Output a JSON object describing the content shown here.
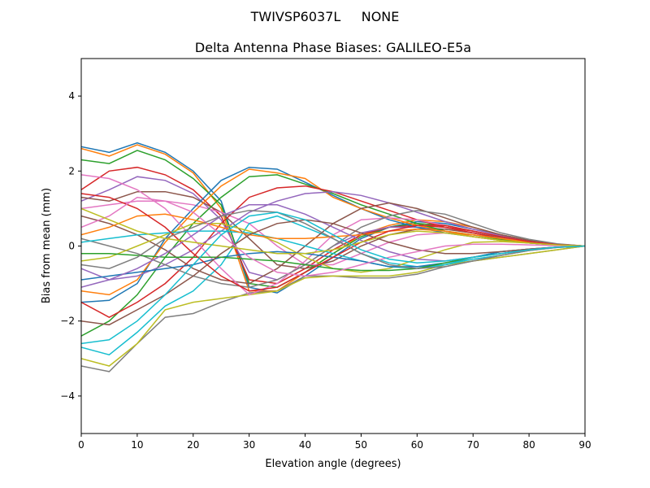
{
  "suptitle": "TWIVSP6037L     NONE",
  "chart_data": {
    "type": "line",
    "title": "Delta Antenna Phase Biases: GALILEO-E5a",
    "xlabel": "Elevation angle (degrees)",
    "ylabel": "Bias from mean (mm)",
    "xlim": [
      0,
      90
    ],
    "ylim": [
      -5,
      5
    ],
    "xticks": [
      0,
      10,
      20,
      30,
      40,
      50,
      60,
      70,
      80,
      90
    ],
    "yticks": [
      -4,
      -2,
      0,
      2,
      4
    ],
    "ytick_labels": [
      "−4",
      "−2",
      "0",
      "2",
      "4"
    ],
    "grid": false,
    "colors": [
      "#1f77b4",
      "#ff7f0e",
      "#2ca02c",
      "#d62728",
      "#9467bd",
      "#8c564b",
      "#e377c2",
      "#7f7f7f",
      "#bcbd22",
      "#17becf"
    ],
    "x": [
      0,
      5,
      10,
      15,
      20,
      25,
      30,
      35,
      40,
      45,
      50,
      55,
      60,
      65,
      70,
      75,
      80,
      85,
      90
    ],
    "series": [
      {
        "values": [
          2.65,
          2.5,
          2.75,
          2.5,
          2.0,
          1.2,
          -1.1,
          -1.25,
          -0.8,
          -0.3,
          0.2,
          0.5,
          0.65,
          0.6,
          0.45,
          0.3,
          0.15,
          0.05,
          0
        ]
      },
      {
        "values": [
          2.6,
          2.4,
          2.7,
          2.45,
          1.95,
          1.0,
          -1.2,
          -1.2,
          -0.7,
          -0.2,
          0.3,
          0.55,
          0.7,
          0.65,
          0.5,
          0.3,
          0.15,
          0.05,
          0
        ]
      },
      {
        "values": [
          2.3,
          2.2,
          2.55,
          2.3,
          1.8,
          1.1,
          -1.0,
          -1.1,
          -0.7,
          -0.2,
          0.25,
          0.5,
          0.6,
          0.55,
          0.4,
          0.25,
          0.12,
          0.04,
          0
        ]
      },
      {
        "values": [
          1.5,
          2.0,
          2.1,
          1.9,
          1.5,
          0.8,
          -0.9,
          -1.0,
          -0.6,
          -0.1,
          0.3,
          0.5,
          0.55,
          0.5,
          0.4,
          0.25,
          0.12,
          0.04,
          0
        ]
      },
      {
        "values": [
          1.2,
          1.5,
          1.85,
          1.75,
          1.4,
          0.7,
          -0.7,
          -0.9,
          -0.5,
          0,
          0.35,
          0.5,
          0.5,
          0.45,
          0.35,
          0.22,
          0.1,
          0.04,
          0
        ]
      },
      {
        "values": [
          1.3,
          1.2,
          1.45,
          1.45,
          1.3,
          0.9,
          0.2,
          -0.5,
          -0.6,
          -0.4,
          0,
          0.3,
          0.45,
          0.45,
          0.35,
          0.22,
          0.1,
          0.04,
          0
        ]
      },
      {
        "values": [
          1.0,
          1.1,
          1.2,
          1.2,
          1.1,
          0.9,
          0.6,
          0,
          -0.5,
          -0.5,
          -0.2,
          0.1,
          0.3,
          0.35,
          0.3,
          0.2,
          0.1,
          0.04,
          0
        ]
      },
      {
        "values": [
          -3.2,
          -3.35,
          -2.6,
          -1.9,
          -1.8,
          -1.5,
          -1.25,
          -1.2,
          -0.8,
          -0.8,
          -0.85,
          -0.85,
          -0.75,
          -0.55,
          -0.4,
          -0.3,
          -0.2,
          -0.1,
          0
        ]
      },
      {
        "values": [
          -3.0,
          -3.2,
          -2.6,
          -1.7,
          -1.5,
          -1.4,
          -1.3,
          -1.2,
          -0.85,
          -0.8,
          -0.8,
          -0.8,
          -0.7,
          -0.5,
          -0.4,
          -0.3,
          -0.2,
          -0.1,
          0
        ]
      },
      {
        "values": [
          -2.7,
          -2.9,
          -2.3,
          -1.6,
          -1.2,
          -0.5,
          0.6,
          0.8,
          0.5,
          0.2,
          -0.2,
          -0.45,
          -0.55,
          -0.5,
          -0.35,
          -0.25,
          -0.12,
          -0.04,
          0
        ]
      },
      {
        "values": [
          -1.5,
          -1.45,
          -1.0,
          0.2,
          1.0,
          1.75,
          2.1,
          2.05,
          1.7,
          1.35,
          1.0,
          0.7,
          0.5,
          0.35,
          0.25,
          0.15,
          0.08,
          0.03,
          0
        ]
      },
      {
        "values": [
          -1.2,
          -1.3,
          -0.9,
          0.1,
          0.9,
          1.6,
          2.05,
          1.95,
          1.8,
          1.3,
          1.0,
          0.75,
          0.55,
          0.4,
          0.25,
          0.15,
          0.08,
          0.03,
          0
        ]
      },
      {
        "values": [
          -2.4,
          -2.0,
          -1.3,
          -0.3,
          0.6,
          1.3,
          1.85,
          1.9,
          1.65,
          1.4,
          1.1,
          0.85,
          0.6,
          0.4,
          0.3,
          0.18,
          0.08,
          0.03,
          0
        ]
      },
      {
        "values": [
          -1.5,
          -1.9,
          -1.5,
          -1.0,
          -0.3,
          0.6,
          1.3,
          1.55,
          1.6,
          1.45,
          1.2,
          0.95,
          0.7,
          0.5,
          0.35,
          0.2,
          0.1,
          0.03,
          0
        ]
      },
      {
        "values": [
          -0.6,
          -0.9,
          -0.8,
          -0.5,
          -0.1,
          0.4,
          0.9,
          1.2,
          1.4,
          1.45,
          1.35,
          1.15,
          0.9,
          0.65,
          0.45,
          0.28,
          0.14,
          0.05,
          0
        ]
      },
      {
        "values": [
          0.8,
          0.6,
          0.3,
          -0.1,
          -0.6,
          -0.9,
          -1.0,
          -0.6,
          0.0,
          0.6,
          1.0,
          1.15,
          1.0,
          0.75,
          0.5,
          0.3,
          0.15,
          0.05,
          0
        ]
      },
      {
        "values": [
          1.9,
          1.8,
          1.5,
          1.0,
          0.2,
          -0.6,
          -1.3,
          -1.0,
          -0.4,
          0.3,
          0.7,
          0.75,
          0.7,
          0.55,
          0.4,
          0.25,
          0.12,
          0.04,
          0
        ]
      },
      {
        "values": [
          0.2,
          0.0,
          -0.2,
          -0.5,
          -0.8,
          -1.0,
          -1.1,
          -0.9,
          -0.5,
          0.0,
          0.5,
          0.8,
          0.95,
          0.85,
          0.6,
          0.35,
          0.18,
          0.06,
          0
        ]
      },
      {
        "values": [
          -0.4,
          -0.3,
          0.0,
          0.3,
          0.6,
          0.6,
          0.4,
          0.1,
          -0.3,
          -0.6,
          -0.7,
          -0.6,
          -0.35,
          -0.1,
          0.1,
          0.12,
          0.08,
          0.03,
          0
        ]
      },
      {
        "values": [
          0.1,
          0.2,
          0.3,
          0.35,
          0.4,
          0.4,
          0.35,
          0.2,
          0.0,
          -0.2,
          -0.4,
          -0.55,
          -0.6,
          -0.5,
          -0.3,
          -0.15,
          -0.08,
          -0.03,
          0
        ]
      },
      {
        "values": [
          -0.9,
          -0.8,
          -0.7,
          -0.6,
          -0.5,
          -0.3,
          -0.2,
          -0.15,
          -0.2,
          -0.3,
          -0.4,
          -0.55,
          -0.55,
          -0.45,
          -0.3,
          -0.15,
          -0.08,
          -0.03,
          0
        ]
      },
      {
        "values": [
          0.3,
          0.5,
          0.8,
          0.85,
          0.7,
          0.5,
          0.3,
          0.2,
          0.2,
          0.25,
          0.3,
          0.4,
          0.45,
          0.4,
          0.3,
          0.2,
          0.1,
          0.03,
          0
        ]
      },
      {
        "values": [
          -0.2,
          -0.2,
          -0.25,
          -0.3,
          -0.3,
          -0.3,
          -0.35,
          -0.4,
          -0.5,
          -0.6,
          -0.65,
          -0.65,
          -0.6,
          -0.45,
          -0.3,
          -0.2,
          -0.1,
          -0.03,
          0
        ]
      },
      {
        "values": [
          1.4,
          1.3,
          1.0,
          0.5,
          -0.2,
          -0.8,
          -1.2,
          -1.1,
          -0.7,
          -0.3,
          0.1,
          0.4,
          0.55,
          0.55,
          0.4,
          0.25,
          0.12,
          0.04,
          0
        ]
      },
      {
        "values": [
          -1.1,
          -0.9,
          -0.6,
          -0.2,
          0.3,
          0.8,
          1.1,
          1.1,
          0.85,
          0.5,
          0.15,
          -0.15,
          -0.35,
          -0.4,
          -0.3,
          -0.2,
          -0.1,
          -0.03,
          0
        ]
      },
      {
        "values": [
          -2.0,
          -2.1,
          -1.7,
          -1.3,
          -0.8,
          -0.2,
          0.3,
          0.6,
          0.7,
          0.6,
          0.35,
          0.1,
          -0.1,
          -0.2,
          -0.2,
          -0.15,
          -0.08,
          -0.03,
          0
        ]
      },
      {
        "values": [
          0.5,
          0.8,
          1.3,
          1.2,
          0.9,
          0.3,
          -0.3,
          -0.7,
          -0.8,
          -0.7,
          -0.5,
          -0.3,
          -0.15,
          0.0,
          0.05,
          0.05,
          0.03,
          0.01,
          0
        ]
      },
      {
        "values": [
          -0.5,
          -0.6,
          -0.3,
          0.2,
          0.5,
          0.8,
          0.95,
          0.9,
          0.6,
          0.2,
          -0.2,
          -0.5,
          -0.6,
          -0.55,
          -0.4,
          -0.25,
          -0.12,
          -0.04,
          0
        ]
      },
      {
        "values": [
          1.0,
          0.7,
          0.4,
          0.2,
          0.1,
          0.0,
          -0.1,
          -0.2,
          -0.2,
          -0.1,
          0.1,
          0.3,
          0.4,
          0.35,
          0.25,
          0.15,
          0.08,
          0.03,
          0
        ]
      },
      {
        "values": [
          -2.6,
          -2.5,
          -2.0,
          -1.3,
          -0.5,
          0.3,
          0.8,
          0.9,
          0.7,
          0.3,
          -0.1,
          -0.35,
          -0.45,
          -0.4,
          -0.3,
          -0.2,
          -0.1,
          -0.03,
          0
        ]
      }
    ]
  }
}
